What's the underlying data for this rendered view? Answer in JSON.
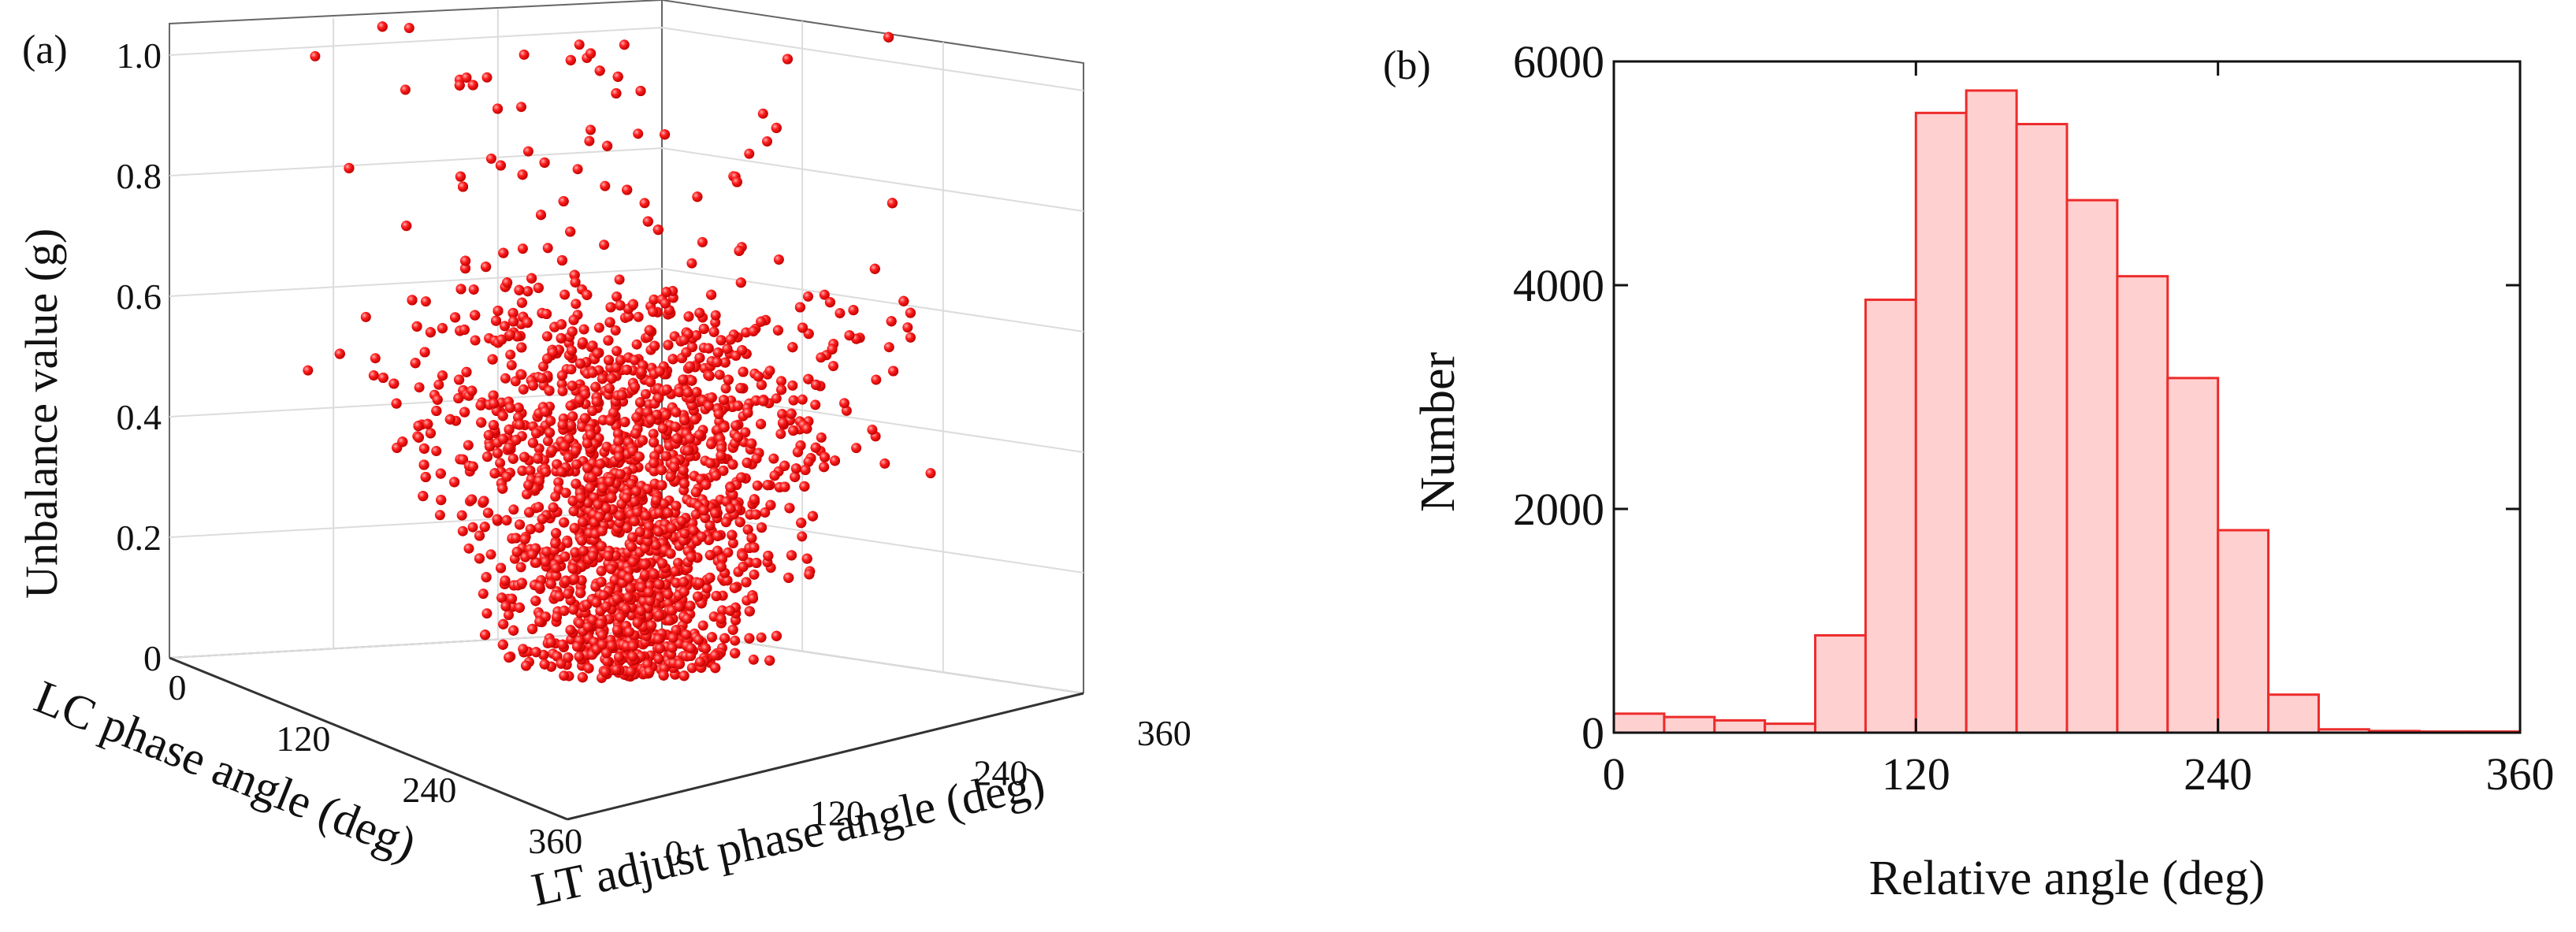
{
  "colors": {
    "scatter_point": "#ff1a1a",
    "scatter_highlight": "#ff8a8a",
    "bar_fill": "#ffd0d0",
    "bar_edge": "#ee2b2b",
    "axis": "#111111",
    "grid": "#dddddd"
  },
  "chart_data": [
    {
      "panel_label": "(a)",
      "type": "scatter",
      "projection": "3d",
      "title": "",
      "xlabel": "LT adjust phase angle (deg)",
      "ylabel": "LC phase angle (deg)",
      "zlabel": "Unbalance value (g)",
      "xticks": [
        "0",
        "120",
        "240",
        "360"
      ],
      "yticks": [
        "0",
        "120",
        "240",
        "360"
      ],
      "zticks": [
        "0",
        "0.2",
        "0.4",
        "0.6",
        "0.8",
        "1.0"
      ],
      "xlim": [
        0,
        360
      ],
      "ylim": [
        0,
        360
      ],
      "zlim": [
        0,
        1.0
      ],
      "grid": true,
      "marker": "sphere",
      "description_of_distribution": {
        "z_min": 0,
        "z_max": 1.03,
        "dense_upper_envelope": 0.6,
        "point_count_visible": "many thousands"
      }
    },
    {
      "panel_label": "(b)",
      "type": "bar",
      "title": "",
      "xlabel": "Relative angle (deg)",
      "ylabel": "Number",
      "xticks": [
        "0",
        "120",
        "240",
        "360"
      ],
      "yticks": [
        "0",
        "2000",
        "4000",
        "6000"
      ],
      "xlim": [
        0,
        360
      ],
      "ylim": [
        0,
        6000
      ],
      "bin_width": 20,
      "bin_edges": [
        0,
        20,
        40,
        60,
        80,
        100,
        120,
        140,
        160,
        180,
        200,
        220,
        240,
        260,
        280,
        300,
        320,
        340,
        360
      ],
      "values": [
        170,
        140,
        110,
        80,
        870,
        3870,
        5540,
        5740,
        5440,
        4760,
        4080,
        3170,
        1810,
        340,
        30,
        15,
        10,
        10
      ],
      "grid": false
    }
  ]
}
